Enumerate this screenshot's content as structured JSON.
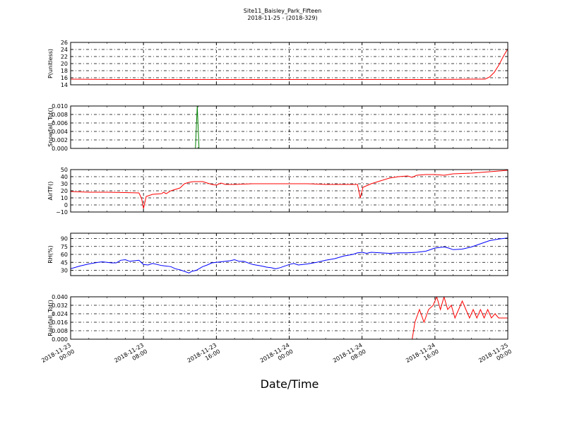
{
  "chart_data": {
    "type": "line",
    "title": "Site11_Baisley_Park_Fifteen",
    "subtitle": "2018-11-25 - (2018-329)",
    "xlabel": "Date/Time",
    "x_ticks": [
      {
        "h": 0,
        "label": [
          "2018-11-23",
          "00:00"
        ]
      },
      {
        "h": 8,
        "label": [
          "2018-11-23",
          "08:00"
        ]
      },
      {
        "h": 16,
        "label": [
          "2018-11-23",
          "16:00"
        ]
      },
      {
        "h": 24,
        "label": [
          "2018-11-24",
          "00:00"
        ]
      },
      {
        "h": 32,
        "label": [
          "2018-11-24",
          "08:00"
        ]
      },
      {
        "h": 40,
        "label": [
          "2018-11-24",
          "16:00"
        ]
      },
      {
        "h": 48,
        "label": [
          "2018-11-25",
          "00:00"
        ]
      }
    ],
    "grid": true,
    "panels": [
      {
        "ylabel": "P(unitless)",
        "color": "#ff0000",
        "ylim": [
          14,
          26
        ],
        "yticks": [
          "14",
          "16",
          "18",
          "20",
          "22",
          "24",
          "26"
        ],
        "points": [
          [
            0,
            15.6
          ],
          [
            5,
            15.5
          ],
          [
            10,
            15.5
          ],
          [
            15,
            15.5
          ],
          [
            20,
            15.5
          ],
          [
            25,
            15.5
          ],
          [
            30,
            15.5
          ],
          [
            35,
            15.5
          ],
          [
            40,
            15.5
          ],
          [
            44,
            15.6
          ],
          [
            45.5,
            15.6
          ],
          [
            46,
            16.2
          ],
          [
            46.5,
            17.5
          ],
          [
            47,
            19.5
          ],
          [
            47.5,
            22
          ],
          [
            48,
            24.2
          ]
        ]
      },
      {
        "ylabel": "Snowfall_Tot()",
        "color": "#008000",
        "ylim": [
          0,
          0.01
        ],
        "yticks": [
          "0.000",
          "0.002",
          "0.004",
          "0.006",
          "0.008",
          "0.010"
        ],
        "points": [
          [
            0,
            0
          ],
          [
            13.7,
            0
          ],
          [
            13.9,
            0.01
          ],
          [
            14.1,
            0
          ],
          [
            48,
            0
          ]
        ]
      },
      {
        "ylabel": "AirTF()",
        "color": "#ff0000",
        "ylim": [
          -10,
          50
        ],
        "yticks": [
          "−10",
          "0",
          "10",
          "20",
          "30",
          "40",
          "50"
        ],
        "points": [
          [
            0,
            19
          ],
          [
            2,
            18
          ],
          [
            4,
            18
          ],
          [
            6,
            17.5
          ],
          [
            7.5,
            17
          ],
          [
            7.8,
            9
          ],
          [
            8,
            -5
          ],
          [
            8.3,
            12
          ],
          [
            9,
            15
          ],
          [
            10,
            16
          ],
          [
            10.2,
            18
          ],
          [
            10.5,
            16
          ],
          [
            11,
            20
          ],
          [
            12,
            24
          ],
          [
            12.5,
            30
          ],
          [
            13,
            32
          ],
          [
            13.5,
            33
          ],
          [
            14.5,
            33
          ],
          [
            15,
            31
          ],
          [
            15.5,
            29
          ],
          [
            16,
            28
          ],
          [
            16.5,
            31
          ],
          [
            17,
            29
          ],
          [
            18,
            29
          ],
          [
            20,
            30
          ],
          [
            22,
            30
          ],
          [
            24,
            30
          ],
          [
            26,
            30
          ],
          [
            28,
            29
          ],
          [
            30,
            29
          ],
          [
            31,
            29
          ],
          [
            31.5,
            29
          ],
          [
            31.8,
            10
          ],
          [
            32.1,
            25
          ],
          [
            33,
            30
          ],
          [
            34,
            34
          ],
          [
            35,
            38
          ],
          [
            36,
            40
          ],
          [
            37,
            41
          ],
          [
            37.5,
            39
          ],
          [
            38,
            42
          ],
          [
            39,
            43
          ],
          [
            40,
            43
          ],
          [
            41,
            42
          ],
          [
            42,
            44
          ],
          [
            44,
            45
          ],
          [
            46,
            47
          ],
          [
            48,
            49
          ]
        ]
      },
      {
        "ylabel": "RH(%)",
        "color": "#0000ff",
        "ylim": [
          20,
          100
        ],
        "yticks": [
          "30",
          "45",
          "60",
          "75",
          "90"
        ],
        "points": [
          [
            0,
            33
          ],
          [
            1,
            38
          ],
          [
            2,
            42
          ],
          [
            3,
            45
          ],
          [
            3.5,
            46
          ],
          [
            4.5,
            44
          ],
          [
            5,
            44
          ],
          [
            5.5,
            49
          ],
          [
            6,
            50
          ],
          [
            6.5,
            47
          ],
          [
            7,
            48
          ],
          [
            7.5,
            49
          ],
          [
            8,
            41
          ],
          [
            8.5,
            40
          ],
          [
            9,
            43
          ],
          [
            10,
            39
          ],
          [
            11,
            37
          ],
          [
            11.5,
            33
          ],
          [
            12,
            31
          ],
          [
            12.5,
            28
          ],
          [
            13,
            25
          ],
          [
            13.3,
            28
          ],
          [
            13.8,
            30
          ],
          [
            14.5,
            37
          ],
          [
            15,
            40
          ],
          [
            15.5,
            44
          ],
          [
            16,
            45
          ],
          [
            17,
            47
          ],
          [
            17.5,
            48
          ],
          [
            18,
            50
          ],
          [
            18.5,
            47
          ],
          [
            19,
            47
          ],
          [
            20,
            41
          ],
          [
            21,
            38
          ],
          [
            21.5,
            36
          ],
          [
            22,
            35
          ],
          [
            22.5,
            33
          ],
          [
            23,
            35
          ],
          [
            24,
            41
          ],
          [
            24.5,
            43
          ],
          [
            25,
            40
          ],
          [
            26,
            42
          ],
          [
            27,
            45
          ],
          [
            28,
            49
          ],
          [
            29,
            52
          ],
          [
            30,
            57
          ],
          [
            31,
            60
          ],
          [
            31.5,
            63
          ],
          [
            32,
            64
          ],
          [
            32.5,
            62
          ],
          [
            33,
            64
          ],
          [
            34,
            63
          ],
          [
            35,
            62
          ],
          [
            36,
            63
          ],
          [
            37,
            63
          ],
          [
            38,
            64
          ],
          [
            39,
            66
          ],
          [
            40,
            72
          ],
          [
            41,
            74
          ],
          [
            41.5,
            72
          ],
          [
            42,
            69
          ],
          [
            43,
            70
          ],
          [
            44,
            74
          ],
          [
            45,
            80
          ],
          [
            46,
            86
          ],
          [
            47,
            89
          ],
          [
            48,
            91
          ]
        ]
      },
      {
        "ylabel": "Rainfall_Tot()",
        "color": "#ff0000",
        "ylim": [
          0,
          0.04
        ],
        "yticks": [
          "0.000",
          "0.008",
          "0.016",
          "0.024",
          "0.032",
          "0.040"
        ],
        "points": [
          [
            0,
            0
          ],
          [
            37.5,
            0
          ],
          [
            37.8,
            0.016
          ],
          [
            38.3,
            0.028
          ],
          [
            38.8,
            0.016
          ],
          [
            39.3,
            0.028
          ],
          [
            39.8,
            0.032
          ],
          [
            40.2,
            0.04
          ],
          [
            40.6,
            0.028
          ],
          [
            41,
            0.04
          ],
          [
            41.4,
            0.028
          ],
          [
            41.8,
            0.032
          ],
          [
            42.2,
            0.02
          ],
          [
            42.6,
            0.028
          ],
          [
            43,
            0.036
          ],
          [
            43.4,
            0.028
          ],
          [
            43.8,
            0.02
          ],
          [
            44.2,
            0.028
          ],
          [
            44.6,
            0.02
          ],
          [
            45,
            0.028
          ],
          [
            45.4,
            0.02
          ],
          [
            45.8,
            0.028
          ],
          [
            46.2,
            0.02
          ],
          [
            46.6,
            0.024
          ],
          [
            47,
            0.02
          ],
          [
            47.5,
            0.02
          ],
          [
            48,
            0.02
          ],
          [
            48,
            0
          ]
        ]
      }
    ]
  }
}
